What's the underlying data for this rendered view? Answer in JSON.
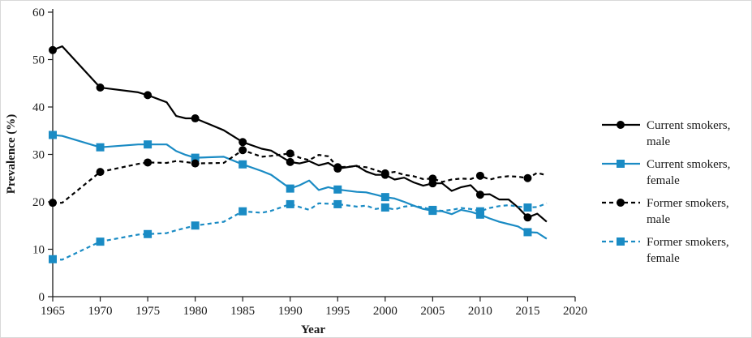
{
  "chart_data": {
    "type": "line",
    "title": "",
    "xlabel": "Year",
    "ylabel": "Prevalence (%)",
    "xlim": [
      1965,
      2020
    ],
    "ylim": [
      0,
      60
    ],
    "x_ticks": [
      1965,
      1970,
      1975,
      1980,
      1985,
      1990,
      1995,
      2000,
      2005,
      2010,
      2015,
      2020
    ],
    "y_ticks": [
      0,
      10,
      20,
      30,
      40,
      50,
      60
    ],
    "grid": false,
    "legend_position": "right",
    "series": [
      {
        "name": "Current smokers, male",
        "legend_lines": [
          "Current smokers,",
          "male"
        ],
        "color": "#000000",
        "line_style": "solid",
        "marker": "circle",
        "points": [
          [
            1965,
            52
          ],
          [
            1966,
            52.8
          ],
          [
            1970,
            44.1
          ],
          [
            1974,
            43.1
          ],
          [
            1975,
            42.5
          ],
          [
            1977,
            41
          ],
          [
            1978,
            38.1
          ],
          [
            1979,
            37.6
          ],
          [
            1980,
            37.6
          ],
          [
            1983,
            35.1
          ],
          [
            1985,
            32.6
          ],
          [
            1987,
            31.2
          ],
          [
            1988,
            30.8
          ],
          [
            1990,
            28.4
          ],
          [
            1991,
            28.1
          ],
          [
            1992,
            28.6
          ],
          [
            1993,
            27.7
          ],
          [
            1994,
            28.2
          ],
          [
            1995,
            27
          ],
          [
            1997,
            27.6
          ],
          [
            1998,
            26.4
          ],
          [
            1999,
            25.7
          ],
          [
            2000,
            25.7
          ],
          [
            2001,
            24.7
          ],
          [
            2002,
            25.1
          ],
          [
            2003,
            24.1
          ],
          [
            2004,
            23.4
          ],
          [
            2005,
            23.9
          ],
          [
            2006,
            23.9
          ],
          [
            2007,
            22.3
          ],
          [
            2008,
            23.1
          ],
          [
            2009,
            23.5
          ],
          [
            2010,
            21.5
          ],
          [
            2011,
            21.6
          ],
          [
            2012,
            20.5
          ],
          [
            2013,
            20.5
          ],
          [
            2014,
            18.8
          ],
          [
            2015,
            16.7
          ],
          [
            2016,
            17.5
          ],
          [
            2017,
            15.8
          ]
        ],
        "marker_x": [
          1965,
          1970,
          1975,
          1980,
          1985,
          1990,
          1995,
          2000,
          2005,
          2010,
          2015
        ]
      },
      {
        "name": "Current smokers, female",
        "legend_lines": [
          "Current smokers,",
          "female"
        ],
        "color": "#1a8bc4",
        "line_style": "solid",
        "marker": "square",
        "points": [
          [
            1965,
            34.1
          ],
          [
            1966,
            33.9
          ],
          [
            1970,
            31.5
          ],
          [
            1974,
            32.1
          ],
          [
            1975,
            32.1
          ],
          [
            1977,
            32.1
          ],
          [
            1978,
            30.7
          ],
          [
            1979,
            29.9
          ],
          [
            1980,
            29.3
          ],
          [
            1983,
            29.5
          ],
          [
            1985,
            27.9
          ],
          [
            1987,
            26.5
          ],
          [
            1988,
            25.7
          ],
          [
            1990,
            22.8
          ],
          [
            1991,
            23.5
          ],
          [
            1992,
            24.5
          ],
          [
            1993,
            22.5
          ],
          [
            1994,
            23.1
          ],
          [
            1995,
            22.6
          ],
          [
            1997,
            22.1
          ],
          [
            1998,
            22
          ],
          [
            1999,
            21.5
          ],
          [
            2000,
            21
          ],
          [
            2001,
            20.7
          ],
          [
            2002,
            20
          ],
          [
            2003,
            19.2
          ],
          [
            2004,
            18.5
          ],
          [
            2005,
            18.1
          ],
          [
            2006,
            18
          ],
          [
            2007,
            17.4
          ],
          [
            2008,
            18.3
          ],
          [
            2009,
            17.9
          ],
          [
            2010,
            17.3
          ],
          [
            2011,
            16.5
          ],
          [
            2012,
            15.8
          ],
          [
            2013,
            15.3
          ],
          [
            2014,
            14.8
          ],
          [
            2015,
            13.6
          ],
          [
            2016,
            13.5
          ],
          [
            2017,
            12.2
          ]
        ],
        "marker_x": [
          1965,
          1970,
          1975,
          1980,
          1985,
          1990,
          1995,
          2000,
          2005,
          2010,
          2015
        ]
      },
      {
        "name": "Former smokers, male",
        "legend_lines": [
          "Former smokers,",
          "male"
        ],
        "color": "#000000",
        "line_style": "dashed",
        "marker": "circle",
        "points": [
          [
            1965,
            19.8
          ],
          [
            1966,
            19.8
          ],
          [
            1970,
            26.3
          ],
          [
            1974,
            28
          ],
          [
            1975,
            28.3
          ],
          [
            1977,
            28.2
          ],
          [
            1978,
            28.6
          ],
          [
            1979,
            28.4
          ],
          [
            1980,
            28.1
          ],
          [
            1983,
            28.2
          ],
          [
            1985,
            30.9
          ],
          [
            1987,
            29.5
          ],
          [
            1988,
            29.7
          ],
          [
            1990,
            30.2
          ],
          [
            1991,
            29.3
          ],
          [
            1992,
            28.8
          ],
          [
            1993,
            29.9
          ],
          [
            1994,
            29.6
          ],
          [
            1995,
            27.3
          ],
          [
            1997,
            27.5
          ],
          [
            1998,
            27.3
          ],
          [
            1999,
            26.7
          ],
          [
            2000,
            26
          ],
          [
            2001,
            26.3
          ],
          [
            2002,
            25.7
          ],
          [
            2003,
            25.4
          ],
          [
            2004,
            24.8
          ],
          [
            2005,
            24.9
          ],
          [
            2006,
            24.2
          ],
          [
            2007,
            24.7
          ],
          [
            2008,
            24.9
          ],
          [
            2009,
            24.8
          ],
          [
            2010,
            25.5
          ],
          [
            2011,
            24.7
          ],
          [
            2012,
            25.2
          ],
          [
            2013,
            25.4
          ],
          [
            2014,
            25.3
          ],
          [
            2015,
            25
          ],
          [
            2016,
            26.1
          ],
          [
            2017,
            25.6
          ]
        ],
        "marker_x": [
          1965,
          1970,
          1975,
          1980,
          1985,
          1990,
          1995,
          2000,
          2005,
          2010,
          2015
        ]
      },
      {
        "name": "Former smokers, female",
        "legend_lines": [
          "Former smokers,",
          "female"
        ],
        "color": "#1a8bc4",
        "line_style": "dashed",
        "marker": "square",
        "points": [
          [
            1965,
            7.9
          ],
          [
            1966,
            7.8
          ],
          [
            1970,
            11.6
          ],
          [
            1974,
            13.1
          ],
          [
            1975,
            13.2
          ],
          [
            1977,
            13.4
          ],
          [
            1978,
            14
          ],
          [
            1979,
            14.5
          ],
          [
            1980,
            15
          ],
          [
            1983,
            15.8
          ],
          [
            1985,
            18
          ],
          [
            1987,
            17.7
          ],
          [
            1988,
            18.1
          ],
          [
            1990,
            19.5
          ],
          [
            1991,
            18.9
          ],
          [
            1992,
            18.3
          ],
          [
            1993,
            19.7
          ],
          [
            1994,
            19.6
          ],
          [
            1995,
            19.5
          ],
          [
            1997,
            19
          ],
          [
            1998,
            19.2
          ],
          [
            1999,
            18.5
          ],
          [
            2000,
            18.8
          ],
          [
            2001,
            18.4
          ],
          [
            2002,
            19
          ],
          [
            2003,
            19.2
          ],
          [
            2004,
            18.8
          ],
          [
            2005,
            18.3
          ],
          [
            2006,
            18.1
          ],
          [
            2007,
            18.3
          ],
          [
            2008,
            18.7
          ],
          [
            2009,
            18.5
          ],
          [
            2010,
            18
          ],
          [
            2011,
            18.7
          ],
          [
            2012,
            19.1
          ],
          [
            2013,
            19.3
          ],
          [
            2014,
            19
          ],
          [
            2015,
            18.8
          ],
          [
            2016,
            18.9
          ],
          [
            2017,
            19.7
          ]
        ],
        "marker_x": [
          1965,
          1970,
          1975,
          1980,
          1985,
          1990,
          1995,
          2000,
          2005,
          2010,
          2015
        ]
      }
    ]
  }
}
